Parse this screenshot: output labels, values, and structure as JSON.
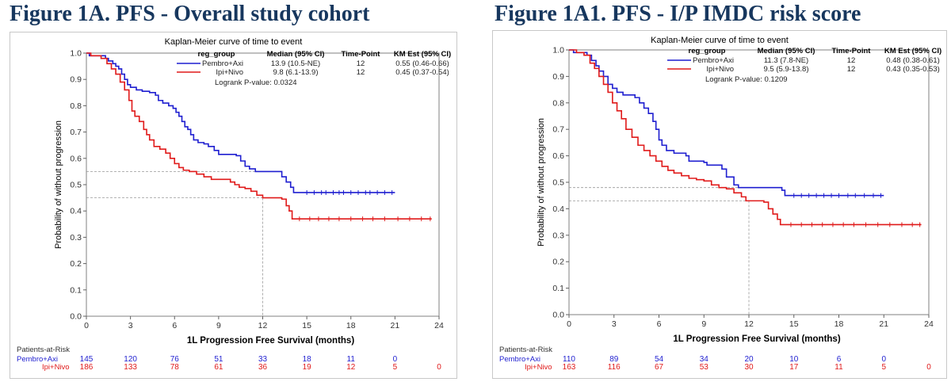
{
  "figures": [
    {
      "title": "Figure 1A. PFS - Overall study cohort",
      "chart_title": "Kaplan-Meier curve of time to event",
      "legend": {
        "headers": [
          "reg_group",
          "Median (95% CI)",
          "Time-Point",
          "KM Est (95% CI)"
        ],
        "rows": [
          {
            "group": "Pembro+Axi",
            "median": "13.9 (10.5-NE)",
            "timepoint": "12",
            "km": "0.55 (0.46-0.66)"
          },
          {
            "group": "Ipi+Nivo",
            "median": "9.8 (6.1-13.9)",
            "timepoint": "12",
            "km": "0.45 (0.37-0.54)"
          }
        ],
        "logrank": "Logrank P-value: 0.0324"
      },
      "risk_table": {
        "header": "Patients-at-Risk",
        "rows": [
          {
            "group": "Pembro+Axi",
            "values": [
              "145",
              "120",
              "76",
              "51",
              "33",
              "18",
              "11",
              "0"
            ]
          },
          {
            "group": "Ipi+Nivo",
            "values": [
              "186",
              "133",
              "78",
              "61",
              "36",
              "19",
              "12",
              "5",
              "0"
            ]
          }
        ]
      }
    },
    {
      "title": "Figure 1A1. PFS - I/P IMDC risk score",
      "chart_title": "Kaplan-Meier curve of time to event",
      "legend": {
        "headers": [
          "reg_group",
          "Median (95% CI)",
          "Time-Point",
          "KM Est (95% CI)"
        ],
        "rows": [
          {
            "group": "Pembro+Axi",
            "median": "11.3 (7.8-NE)",
            "timepoint": "12",
            "km": "0.48 (0.38-0.61)"
          },
          {
            "group": "Ipi+Nivo",
            "median": "9.5 (5.9-13.8)",
            "timepoint": "12",
            "km": "0.43 (0.35-0.53)"
          }
        ],
        "logrank": "Logrank P-value: 0.1209"
      },
      "risk_table": {
        "header": "Patients-at-Risk",
        "rows": [
          {
            "group": "Pembro+Axi",
            "values": [
              "110",
              "89",
              "54",
              "34",
              "20",
              "10",
              "6",
              "0"
            ]
          },
          {
            "group": "Ipi+Nivo",
            "values": [
              "163",
              "116",
              "67",
              "53",
              "30",
              "17",
              "11",
              "5",
              "0"
            ]
          }
        ]
      }
    }
  ],
  "chart_data": [
    {
      "type": "line",
      "title": "Kaplan-Meier curve of time to event",
      "xlabel": "1L Progression Free Survival (months)",
      "ylabel": "Probability of without progression",
      "xlim": [
        0,
        24
      ],
      "ylim": [
        0,
        1
      ],
      "xticks": [
        0,
        3,
        6,
        9,
        12,
        15,
        18,
        21,
        24
      ],
      "yticks": [
        0.0,
        0.1,
        0.2,
        0.3,
        0.4,
        0.5,
        0.6,
        0.7,
        0.8,
        0.9,
        1.0
      ],
      "colors": {
        "Pembro+Axi": "#1f1fd0",
        "Ipi+Nivo": "#e01a1a"
      },
      "reference_lines": [
        {
          "x": 12,
          "y": 0.55
        },
        {
          "x": 12,
          "y": 0.45
        }
      ],
      "series": [
        {
          "name": "Pembro+Axi",
          "color": "#1f1fd0",
          "steps": [
            [
              0,
              1.0
            ],
            [
              0.2,
              0.99
            ],
            [
              1.3,
              0.98
            ],
            [
              1.5,
              0.97
            ],
            [
              1.8,
              0.96
            ],
            [
              2.0,
              0.95
            ],
            [
              2.2,
              0.94
            ],
            [
              2.4,
              0.92
            ],
            [
              2.6,
              0.9
            ],
            [
              2.8,
              0.88
            ],
            [
              3.0,
              0.87
            ],
            [
              3.4,
              0.86
            ],
            [
              3.8,
              0.855
            ],
            [
              4.3,
              0.85
            ],
            [
              4.7,
              0.84
            ],
            [
              4.9,
              0.82
            ],
            [
              5.2,
              0.81
            ],
            [
              5.6,
              0.8
            ],
            [
              5.9,
              0.79
            ],
            [
              6.1,
              0.775
            ],
            [
              6.3,
              0.76
            ],
            [
              6.5,
              0.74
            ],
            [
              6.7,
              0.72
            ],
            [
              6.9,
              0.71
            ],
            [
              7.1,
              0.69
            ],
            [
              7.3,
              0.67
            ],
            [
              7.6,
              0.66
            ],
            [
              8.0,
              0.655
            ],
            [
              8.3,
              0.645
            ],
            [
              8.7,
              0.63
            ],
            [
              9.0,
              0.615
            ],
            [
              10.2,
              0.61
            ],
            [
              10.5,
              0.59
            ],
            [
              10.8,
              0.57
            ],
            [
              11.1,
              0.56
            ],
            [
              11.5,
              0.55
            ],
            [
              12.7,
              0.55
            ],
            [
              13.3,
              0.53
            ],
            [
              13.6,
              0.51
            ],
            [
              13.9,
              0.49
            ],
            [
              14.1,
              0.47
            ],
            [
              21,
              0.47
            ]
          ],
          "censor": [
            [
              15.0,
              0.47
            ],
            [
              15.5,
              0.47
            ],
            [
              16.0,
              0.47
            ],
            [
              16.3,
              0.47
            ],
            [
              16.8,
              0.47
            ],
            [
              17.2,
              0.47
            ],
            [
              17.5,
              0.47
            ],
            [
              18.0,
              0.47
            ],
            [
              18.5,
              0.47
            ],
            [
              19.0,
              0.47
            ],
            [
              19.3,
              0.47
            ],
            [
              19.8,
              0.47
            ],
            [
              20.3,
              0.47
            ],
            [
              20.8,
              0.47
            ]
          ],
          "at_risk": [
            145,
            120,
            76,
            51,
            33,
            18,
            11,
            0
          ]
        },
        {
          "name": "Ipi+Nivo",
          "color": "#e01a1a",
          "steps": [
            [
              0,
              1.0
            ],
            [
              0.3,
              0.99
            ],
            [
              1.0,
              0.98
            ],
            [
              1.4,
              0.96
            ],
            [
              1.7,
              0.94
            ],
            [
              2.0,
              0.92
            ],
            [
              2.3,
              0.89
            ],
            [
              2.6,
              0.86
            ],
            [
              2.9,
              0.82
            ],
            [
              3.1,
              0.78
            ],
            [
              3.3,
              0.76
            ],
            [
              3.6,
              0.74
            ],
            [
              3.9,
              0.71
            ],
            [
              4.1,
              0.69
            ],
            [
              4.3,
              0.67
            ],
            [
              4.6,
              0.645
            ],
            [
              5.0,
              0.635
            ],
            [
              5.4,
              0.62
            ],
            [
              5.7,
              0.6
            ],
            [
              6.0,
              0.58
            ],
            [
              6.3,
              0.565
            ],
            [
              6.6,
              0.555
            ],
            [
              7.0,
              0.55
            ],
            [
              7.5,
              0.54
            ],
            [
              8.0,
              0.53
            ],
            [
              8.5,
              0.52
            ],
            [
              9.8,
              0.51
            ],
            [
              10.1,
              0.5
            ],
            [
              10.4,
              0.49
            ],
            [
              10.8,
              0.485
            ],
            [
              11.2,
              0.475
            ],
            [
              11.6,
              0.46
            ],
            [
              12.0,
              0.45
            ],
            [
              13.3,
              0.445
            ],
            [
              13.6,
              0.42
            ],
            [
              13.8,
              0.4
            ],
            [
              14.0,
              0.37
            ],
            [
              23.5,
              0.37
            ]
          ],
          "censor": [
            [
              14.5,
              0.37
            ],
            [
              15.2,
              0.37
            ],
            [
              15.8,
              0.37
            ],
            [
              16.5,
              0.37
            ],
            [
              17.2,
              0.37
            ],
            [
              18.0,
              0.37
            ],
            [
              18.8,
              0.37
            ],
            [
              19.5,
              0.37
            ],
            [
              20.3,
              0.37
            ],
            [
              21.2,
              0.37
            ],
            [
              22.0,
              0.37
            ],
            [
              22.8,
              0.37
            ],
            [
              23.4,
              0.37
            ]
          ],
          "at_risk": [
            186,
            133,
            78,
            61,
            36,
            19,
            12,
            5,
            0
          ]
        }
      ]
    },
    {
      "type": "line",
      "title": "Kaplan-Meier curve of time to event",
      "xlabel": "1L Progression Free Survival (months)",
      "ylabel": "Probability of without progression",
      "xlim": [
        0,
        24
      ],
      "ylim": [
        0,
        1
      ],
      "xticks": [
        0,
        3,
        6,
        9,
        12,
        15,
        18,
        21,
        24
      ],
      "yticks": [
        0.0,
        0.1,
        0.2,
        0.3,
        0.4,
        0.5,
        0.6,
        0.7,
        0.8,
        0.9,
        1.0
      ],
      "colors": {
        "Pembro+Axi": "#1f1fd0",
        "Ipi+Nivo": "#e01a1a"
      },
      "reference_lines": [
        {
          "x": 12,
          "y": 0.48
        },
        {
          "x": 12,
          "y": 0.43
        }
      ],
      "series": [
        {
          "name": "Pembro+Axi",
          "color": "#1f1fd0",
          "steps": [
            [
              0,
              1.0
            ],
            [
              0.3,
              0.99
            ],
            [
              1.2,
              0.98
            ],
            [
              1.5,
              0.96
            ],
            [
              1.8,
              0.94
            ],
            [
              2.0,
              0.92
            ],
            [
              2.3,
              0.9
            ],
            [
              2.6,
              0.87
            ],
            [
              2.9,
              0.855
            ],
            [
              3.2,
              0.84
            ],
            [
              3.6,
              0.83
            ],
            [
              4.0,
              0.83
            ],
            [
              4.4,
              0.82
            ],
            [
              4.7,
              0.8
            ],
            [
              5.0,
              0.78
            ],
            [
              5.3,
              0.76
            ],
            [
              5.6,
              0.73
            ],
            [
              5.8,
              0.7
            ],
            [
              6.0,
              0.66
            ],
            [
              6.2,
              0.64
            ],
            [
              6.5,
              0.62
            ],
            [
              7.0,
              0.61
            ],
            [
              7.8,
              0.6
            ],
            [
              8.0,
              0.58
            ],
            [
              9.0,
              0.575
            ],
            [
              9.2,
              0.565
            ],
            [
              10.2,
              0.55
            ],
            [
              10.5,
              0.52
            ],
            [
              11.0,
              0.49
            ],
            [
              11.3,
              0.48
            ],
            [
              14.2,
              0.47
            ],
            [
              14.4,
              0.45
            ],
            [
              21,
              0.45
            ]
          ],
          "censor": [
            [
              15.0,
              0.45
            ],
            [
              15.5,
              0.45
            ],
            [
              16.0,
              0.45
            ],
            [
              16.5,
              0.45
            ],
            [
              17.0,
              0.45
            ],
            [
              17.5,
              0.45
            ],
            [
              18.0,
              0.45
            ],
            [
              18.6,
              0.45
            ],
            [
              19.1,
              0.45
            ],
            [
              19.7,
              0.45
            ],
            [
              20.3,
              0.45
            ],
            [
              20.8,
              0.45
            ]
          ],
          "at_risk": [
            110,
            89,
            54,
            34,
            20,
            10,
            6,
            0
          ]
        },
        {
          "name": "Ipi+Nivo",
          "color": "#e01a1a",
          "steps": [
            [
              0,
              1.0
            ],
            [
              0.5,
              0.99
            ],
            [
              1.0,
              0.98
            ],
            [
              1.4,
              0.95
            ],
            [
              1.7,
              0.93
            ],
            [
              2.0,
              0.9
            ],
            [
              2.3,
              0.87
            ],
            [
              2.6,
              0.84
            ],
            [
              2.9,
              0.8
            ],
            [
              3.2,
              0.77
            ],
            [
              3.5,
              0.74
            ],
            [
              3.8,
              0.7
            ],
            [
              4.2,
              0.67
            ],
            [
              4.6,
              0.64
            ],
            [
              5.0,
              0.62
            ],
            [
              5.4,
              0.6
            ],
            [
              5.8,
              0.58
            ],
            [
              6.2,
              0.56
            ],
            [
              6.6,
              0.545
            ],
            [
              7.0,
              0.535
            ],
            [
              7.5,
              0.525
            ],
            [
              8.0,
              0.515
            ],
            [
              8.5,
              0.51
            ],
            [
              9.0,
              0.505
            ],
            [
              9.5,
              0.49
            ],
            [
              10.0,
              0.48
            ],
            [
              10.5,
              0.475
            ],
            [
              11.0,
              0.46
            ],
            [
              11.5,
              0.445
            ],
            [
              11.8,
              0.43
            ],
            [
              13.0,
              0.425
            ],
            [
              13.3,
              0.4
            ],
            [
              13.6,
              0.38
            ],
            [
              13.9,
              0.36
            ],
            [
              14.1,
              0.34
            ],
            [
              23.5,
              0.34
            ]
          ],
          "censor": [
            [
              14.8,
              0.34
            ],
            [
              15.5,
              0.34
            ],
            [
              16.2,
              0.34
            ],
            [
              16.9,
              0.34
            ],
            [
              17.6,
              0.34
            ],
            [
              18.3,
              0.34
            ],
            [
              19.0,
              0.34
            ],
            [
              19.8,
              0.34
            ],
            [
              20.6,
              0.34
            ],
            [
              21.4,
              0.34
            ],
            [
              22.2,
              0.34
            ],
            [
              22.9,
              0.34
            ],
            [
              23.4,
              0.34
            ]
          ],
          "at_risk": [
            163,
            116,
            67,
            53,
            30,
            17,
            11,
            5,
            0
          ]
        }
      ]
    }
  ]
}
